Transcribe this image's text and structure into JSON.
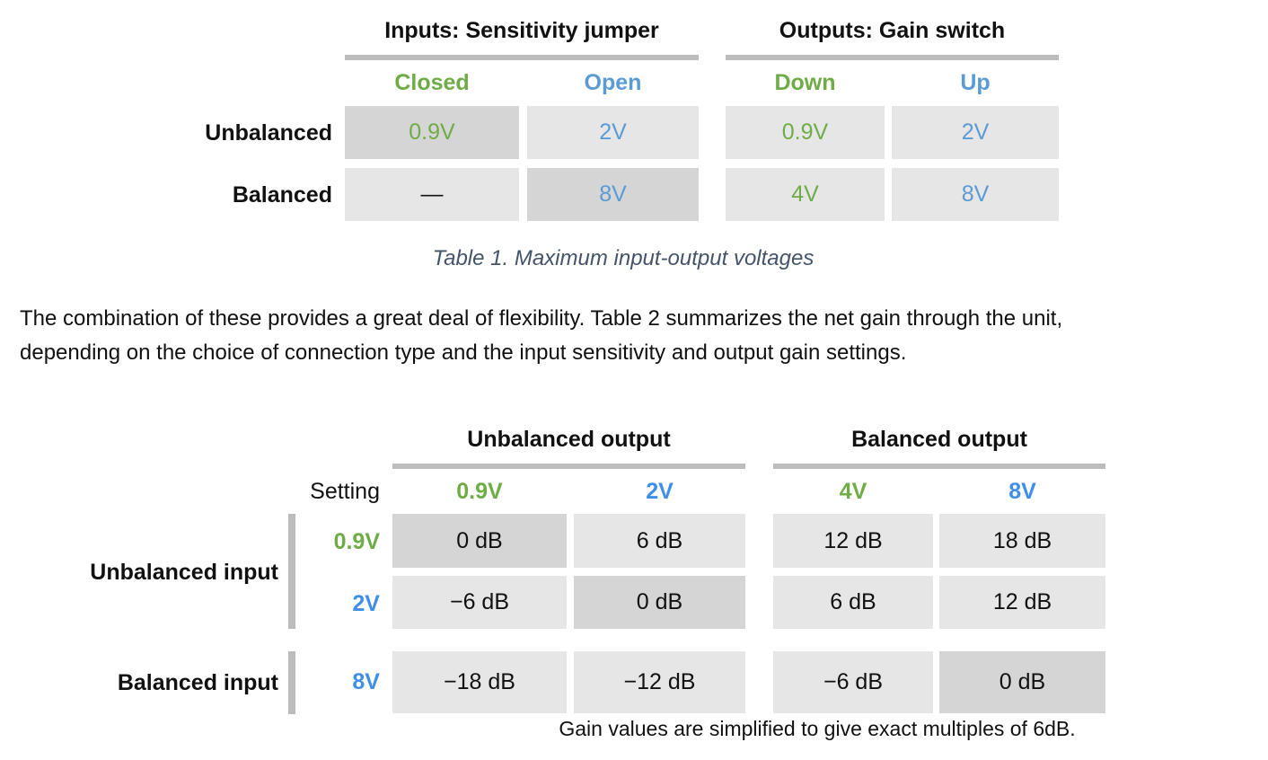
{
  "colors": {
    "green": "#6fac46",
    "blue": "#5b9bd5",
    "bright_blue": "#3f8ee8",
    "caption": "#44546a",
    "cell_light": "#e6e6e6",
    "cell_dark": "#d5d5d5",
    "rule": "#bdbdbd"
  },
  "table1": {
    "inputs_title": "Inputs: Sensitivity jumper",
    "outputs_title": "Outputs: Gain switch",
    "col_heads": [
      "Closed",
      "Open",
      "Down",
      "Up"
    ],
    "rows": [
      {
        "label": "Unbalanced",
        "values": [
          "0.9V",
          "2V",
          "0.9V",
          "2V"
        ]
      },
      {
        "label": "Balanced",
        "values": [
          "—",
          "8V",
          "4V",
          "8V"
        ]
      }
    ],
    "caption": "Table 1. Maximum input-output voltages"
  },
  "paragraph": {
    "line1": "The combination of these provides a great deal of flexibility. Table 2 summarizes the net gain through the unit,",
    "line2": "depending on the choice of connection type and the input sensitivity and output gain settings."
  },
  "table2": {
    "unbalanced_output_title": "Unbalanced output",
    "balanced_output_title": "Balanced output",
    "setting_label": "Setting",
    "col_heads": [
      "0.9V",
      "2V",
      "4V",
      "8V"
    ],
    "unbalanced_input_label": "Unbalanced input",
    "balanced_input_label": "Balanced input",
    "rows": [
      {
        "setting": "0.9V",
        "values": [
          "0 dB",
          "6 dB",
          "12 dB",
          "18 dB"
        ]
      },
      {
        "setting": "2V",
        "values": [
          "−6 dB",
          "0 dB",
          "6 dB",
          "12 dB"
        ]
      },
      {
        "setting": "8V",
        "values": [
          "−18 dB",
          "−12 dB",
          "−6 dB",
          "0 dB"
        ]
      }
    ],
    "note": "Gain values are simplified to give exact multiples of 6dB."
  }
}
